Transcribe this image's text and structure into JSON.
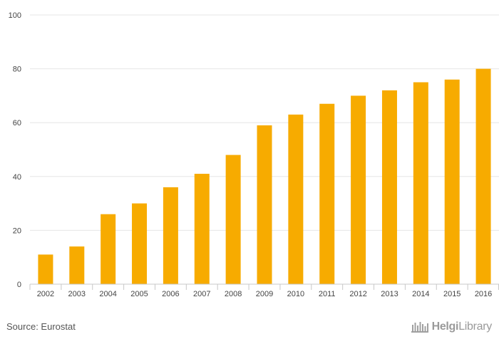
{
  "chart_data": {
    "type": "bar",
    "categories": [
      "2002",
      "2003",
      "2004",
      "2005",
      "2006",
      "2007",
      "2008",
      "2009",
      "2010",
      "2011",
      "2012",
      "2013",
      "2014",
      "2015",
      "2016"
    ],
    "values": [
      11,
      14,
      26,
      30,
      36,
      41,
      48,
      59,
      63,
      67,
      70,
      72,
      75,
      76,
      80
    ],
    "title": "",
    "xlabel": "",
    "ylabel": "",
    "ylim": [
      0,
      100
    ],
    "yticks": [
      0,
      20,
      40,
      60,
      80,
      100
    ],
    "grid": true,
    "bar_color": "#f7ab00"
  },
  "footer": {
    "source": "Source: Eurostat",
    "brand_bold": "Helgi",
    "brand_rest": "Library"
  }
}
